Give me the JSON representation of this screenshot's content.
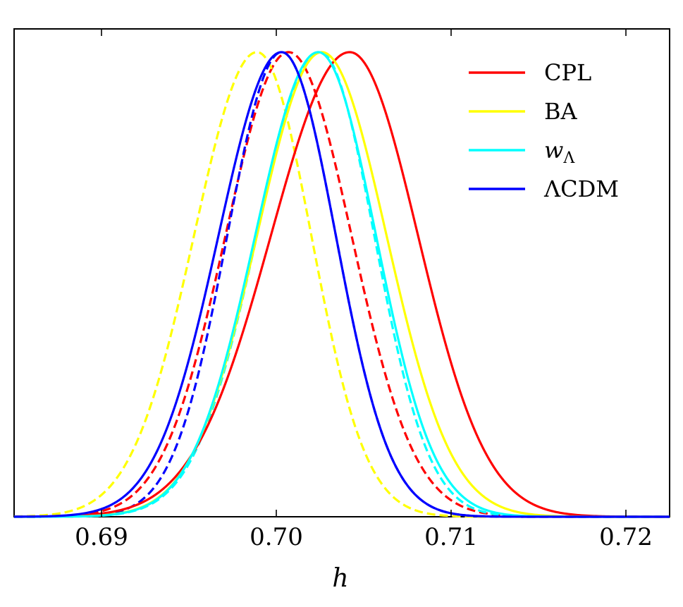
{
  "chart_data": {
    "type": "line",
    "title": "",
    "xlabel": "h",
    "ylabel": "",
    "xlim": [
      0.685,
      0.7225
    ],
    "ylim": [
      0,
      1.05
    ],
    "xticks": [
      0.69,
      0.7,
      0.71,
      0.72
    ],
    "xtick_labels": [
      "0.69",
      "0.70",
      "0.71",
      "0.72"
    ],
    "legend_position": "top-right",
    "grid": false,
    "series": [
      {
        "name": "CPL",
        "label_main": "CPL",
        "label_sub": "",
        "color": "#ff0000",
        "style": "solid",
        "peak": 0.7042,
        "sigma_left": 0.0045,
        "sigma_right": 0.0039
      },
      {
        "name": "BA",
        "label_main": "BA",
        "label_sub": "",
        "color": "#ffff00",
        "style": "solid",
        "peak": 0.7026,
        "sigma_left": 0.0037,
        "sigma_right": 0.0037
      },
      {
        "name": "wΛ",
        "label_main": "w",
        "label_sub": "Λ",
        "color": "#00ffff",
        "style": "solid",
        "peak": 0.7024,
        "sigma_left": 0.0036,
        "sigma_right": 0.0033
      },
      {
        "name": "ΛCDM",
        "label_main": "ΛCDM",
        "label_sub": "",
        "color": "#0000ff",
        "style": "solid",
        "peak": 0.7003,
        "sigma_left": 0.0036,
        "sigma_right": 0.0031
      },
      {
        "name": "CPL (dashed)",
        "color": "#ff0000",
        "style": "dashed",
        "peak": 0.7007,
        "sigma_left": 0.0036,
        "sigma_right": 0.0036
      },
      {
        "name": "BA (dashed)",
        "color": "#ffff00",
        "style": "dashed",
        "peak": 0.6989,
        "sigma_left": 0.0036,
        "sigma_right": 0.0031
      },
      {
        "name": "wΛ (dashed)",
        "color": "#00ffff",
        "style": "dashed",
        "peak": 0.7025,
        "sigma_left": 0.0036,
        "sigma_right": 0.0031
      },
      {
        "name": "ΛCDM (dashed)",
        "color": "#0000ff",
        "style": "dashed",
        "peak": 0.7003,
        "sigma_left": 0.0031,
        "sigma_right": 0.0031
      }
    ]
  }
}
